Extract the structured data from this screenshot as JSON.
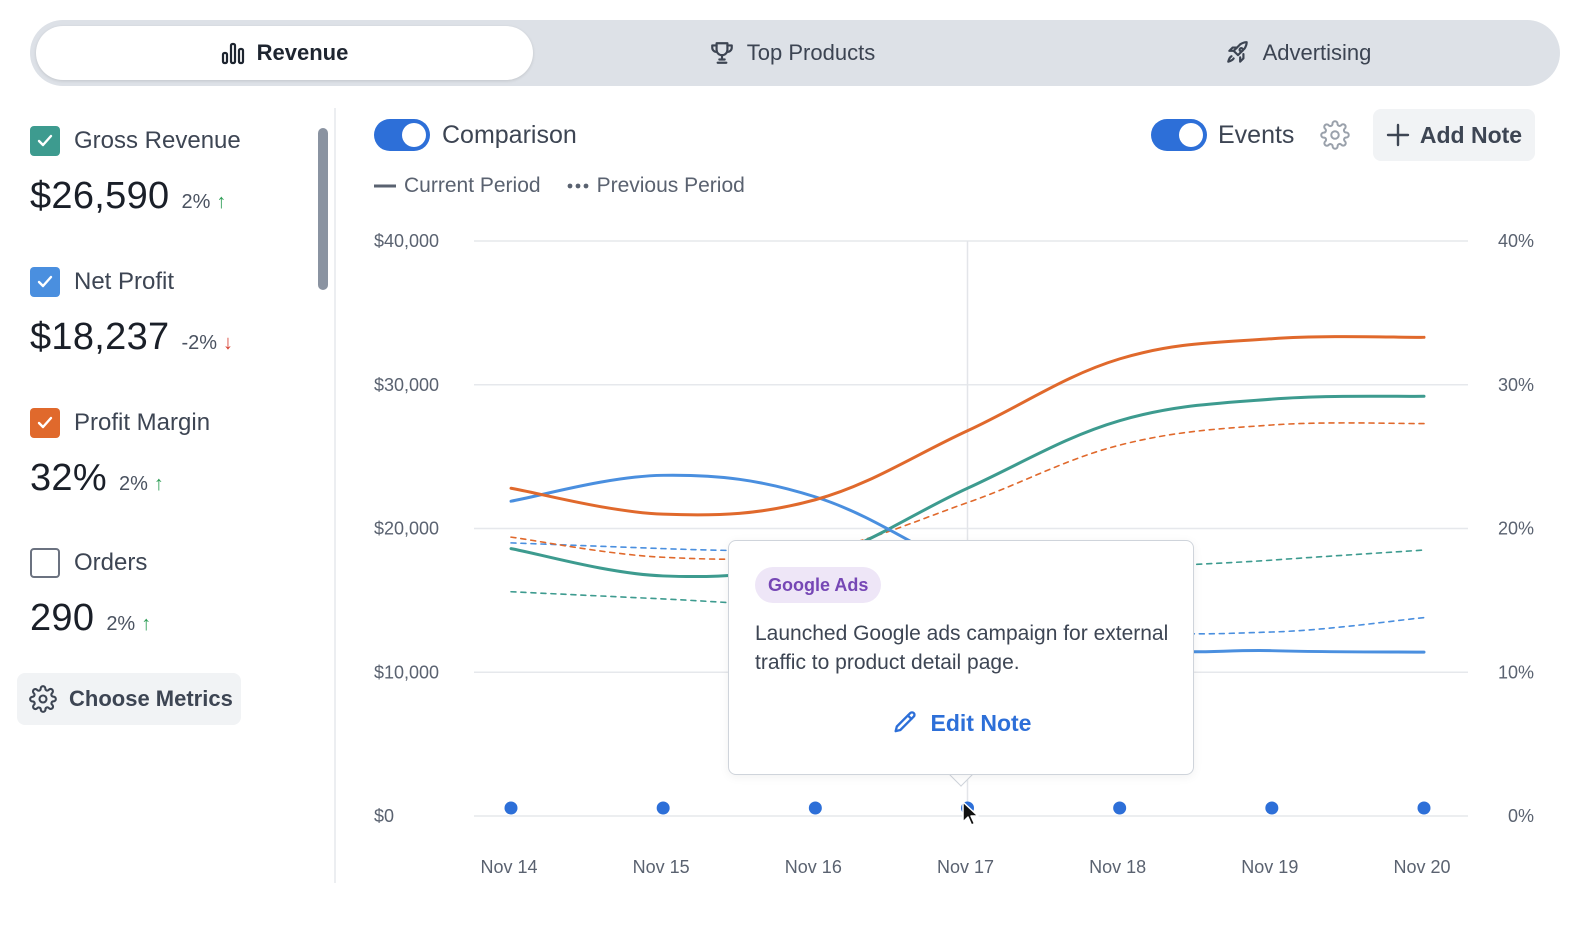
{
  "tabs": [
    {
      "label": "Revenue",
      "icon": "bar-chart-icon",
      "active": true
    },
    {
      "label": "Top Products",
      "icon": "trophy-icon",
      "active": false
    },
    {
      "label": "Advertising",
      "icon": "rocket-icon",
      "active": false
    }
  ],
  "metrics": [
    {
      "label": "Gross Revenue",
      "value": "$26,590",
      "change": "2%",
      "direction": "up",
      "checked": true,
      "color": "#3d9b8f"
    },
    {
      "label": "Net Profit",
      "value": "$18,237",
      "change": "-2%",
      "direction": "down",
      "checked": true,
      "color": "#4a8fdf"
    },
    {
      "label": "Profit Margin",
      "value": "32%",
      "change": "2%",
      "direction": "up",
      "checked": true,
      "color": "#e0692c"
    },
    {
      "label": "Orders",
      "value": "290",
      "change": "2%",
      "direction": "up",
      "checked": false,
      "color": "#6b7280"
    }
  ],
  "choose_metrics_label": "Choose Metrics",
  "controls": {
    "comparison_label": "Comparison",
    "comparison_on": true,
    "events_label": "Events",
    "events_on": true,
    "add_note_label": "Add Note"
  },
  "legend": {
    "current": "Current Period",
    "previous": "Previous Period"
  },
  "tooltip": {
    "badge": "Google Ads",
    "text": "Launched Google ads campaign for external traffic to product detail page.",
    "edit_label": "Edit Note"
  },
  "chart_data": {
    "type": "line",
    "categories": [
      "Nov 14",
      "Nov 15",
      "Nov 16",
      "Nov 17",
      "Nov 18",
      "Nov 19",
      "Nov 20"
    ],
    "y_left_ticks": [
      "$0",
      "$10,000",
      "$20,000",
      "$30,000",
      "$40,000"
    ],
    "y_right_ticks": [
      "0%",
      "10%",
      "20%",
      "30%",
      "40%"
    ],
    "ylim": [
      0,
      40000
    ],
    "ylim_right": [
      0,
      40
    ],
    "highlight_category": "Nov 17",
    "event_markers": [
      "Nov 14",
      "Nov 15",
      "Nov 16",
      "Nov 17",
      "Nov 18",
      "Nov 19",
      "Nov 20"
    ],
    "series": [
      {
        "metric": "Gross Revenue",
        "period": "current",
        "color": "#3d9b8f",
        "values": [
          18600,
          16700,
          17800,
          22800,
          27500,
          29000,
          29200
        ]
      },
      {
        "metric": "Gross Revenue",
        "period": "previous",
        "color": "#3d9b8f",
        "values": [
          15600,
          15100,
          14600,
          14800,
          17000,
          17800,
          18500
        ]
      },
      {
        "metric": "Net Profit",
        "period": "current",
        "color": "#4a8fdf",
        "values": [
          21900,
          23700,
          22200,
          17000,
          12000,
          11500,
          11400
        ]
      },
      {
        "metric": "Net Profit",
        "period": "previous",
        "color": "#4a8fdf",
        "values": [
          19000,
          18600,
          18200,
          17000,
          13200,
          12800,
          13800
        ]
      },
      {
        "metric": "Profit Margin",
        "period": "current",
        "color": "#e0692c",
        "values": [
          22800,
          21000,
          22000,
          26800,
          31800,
          33200,
          33300
        ]
      },
      {
        "metric": "Profit Margin",
        "period": "previous",
        "color": "#e0692c",
        "values": [
          19400,
          18000,
          18400,
          21800,
          25800,
          27200,
          27300
        ]
      }
    ]
  }
}
